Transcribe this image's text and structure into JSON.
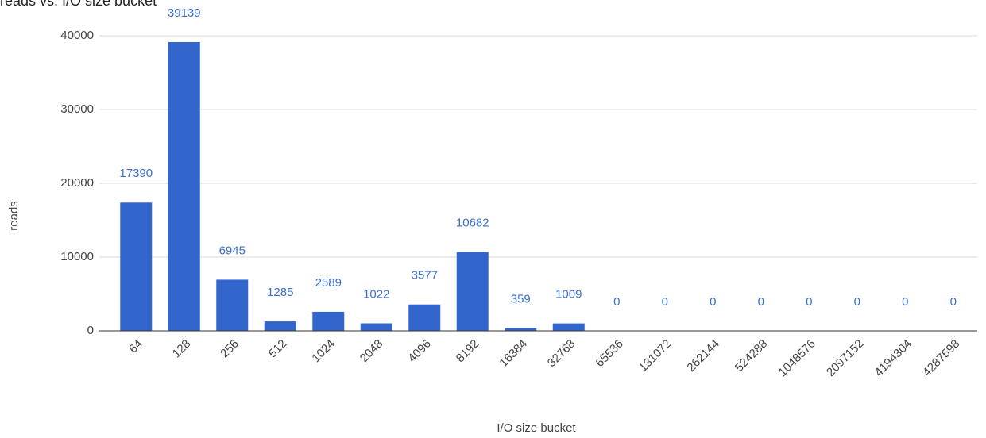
{
  "chart_data": {
    "type": "bar",
    "title": "reads vs. I/O size bucket",
    "x_label": "I/O size bucket",
    "y_label": "reads",
    "categories": [
      "64",
      "128",
      "256",
      "512",
      "1024",
      "2048",
      "4096",
      "8192",
      "16384",
      "32768",
      "65536",
      "131072",
      "262144",
      "524288",
      "1048576",
      "2097152",
      "4194304",
      "4287598"
    ],
    "values": [
      17390,
      39139,
      6945,
      1285,
      2589,
      1022,
      3577,
      10682,
      359,
      1009,
      0,
      0,
      0,
      0,
      0,
      0,
      0,
      0
    ],
    "color": "#3366cc",
    "ylim": [
      0,
      40000
    ],
    "yticks": [
      0,
      10000,
      20000,
      30000,
      40000
    ],
    "grid": true
  }
}
